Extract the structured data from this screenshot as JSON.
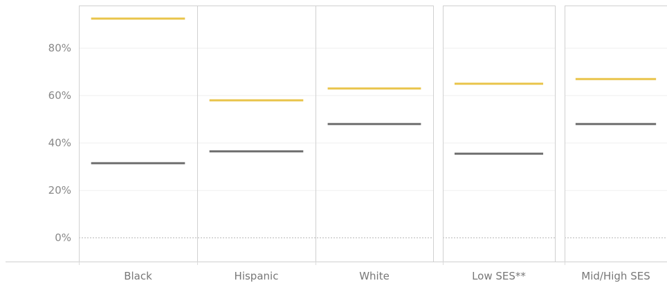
{
  "chart_data": {
    "type": "bar",
    "title": "",
    "xlabel": "",
    "ylabel": "",
    "categories": [
      "Black",
      "Hispanic",
      "White",
      "Low SES**",
      "Mid/High SES"
    ],
    "groups": [
      [
        "Black",
        "Hispanic",
        "White"
      ],
      [
        "Low SES**"
      ],
      [
        "Mid/High SES"
      ]
    ],
    "series": [
      {
        "color": "#e9c44a",
        "values": [
          92.5,
          58,
          63,
          65,
          67
        ]
      },
      {
        "color": "#6e6e6e",
        "values": [
          31.5,
          36.5,
          48,
          35.5,
          48
        ]
      }
    ],
    "yticks": [
      0,
      20,
      40,
      60,
      80
    ],
    "ytick_labels": [
      "0%",
      "20%",
      "40%",
      "60%",
      "80%"
    ],
    "ylim": [
      -10,
      98
    ],
    "grid": true,
    "zero_line": "dotted",
    "mark_style": "horizontal-line"
  }
}
